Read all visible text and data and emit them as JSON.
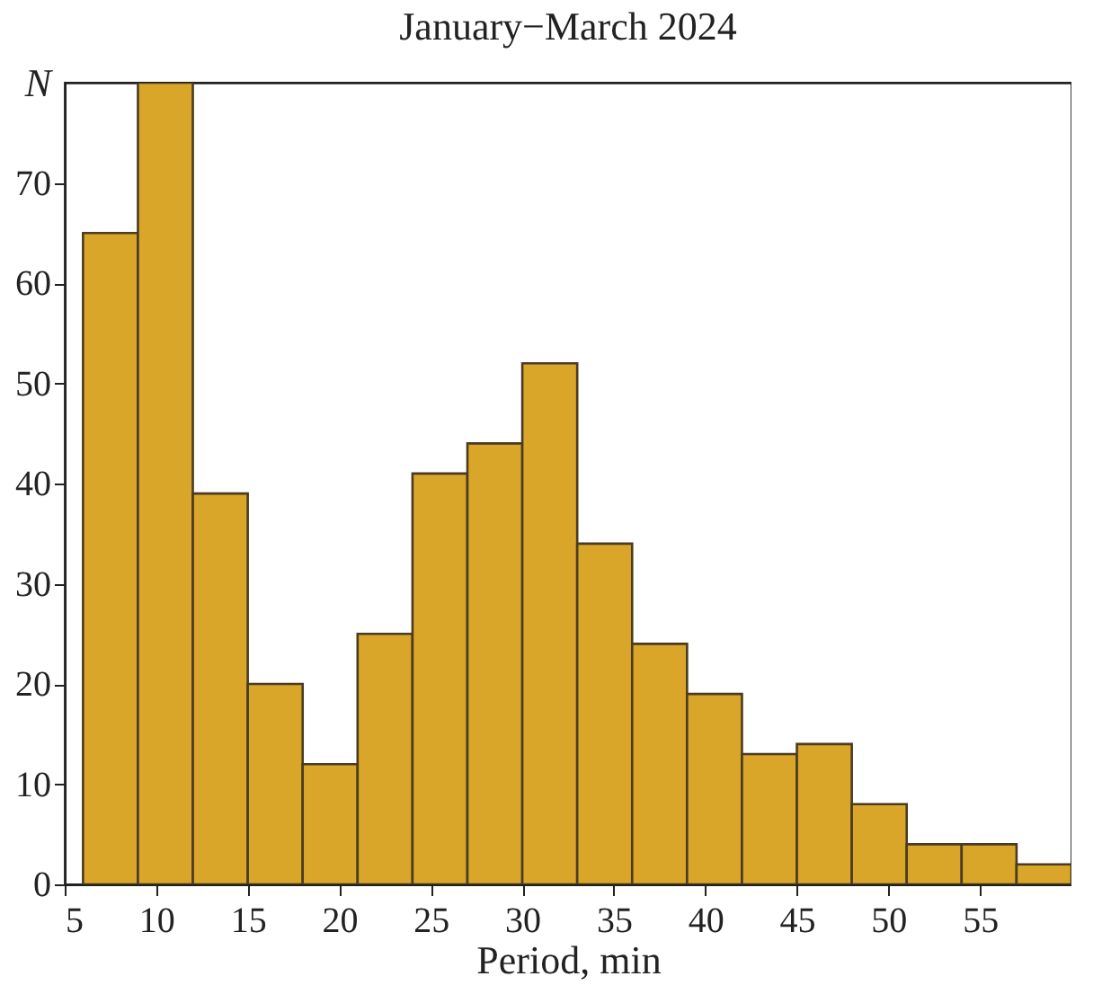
{
  "chart_data": {
    "type": "histogram",
    "title": "January−March 2024",
    "xlabel": "Period, min",
    "ylabel": "N",
    "bins": [
      6,
      9,
      12,
      15,
      18,
      21,
      24,
      27,
      30,
      33,
      36,
      39,
      42,
      45,
      48,
      51,
      54,
      57,
      60
    ],
    "values": [
      65,
      80,
      39,
      20,
      12,
      25,
      41,
      44,
      52,
      34,
      24,
      19,
      13,
      14,
      8,
      4,
      4,
      2
    ],
    "color": "#d9a629",
    "xlim": [
      5,
      60
    ],
    "xticks": [
      5,
      10,
      15,
      20,
      25,
      30,
      35,
      40,
      45,
      50,
      55
    ],
    "ylim": [
      0,
      80
    ],
    "yticks": [
      0,
      10,
      20,
      30,
      40,
      50,
      60,
      70
    ],
    "grid": false
  }
}
